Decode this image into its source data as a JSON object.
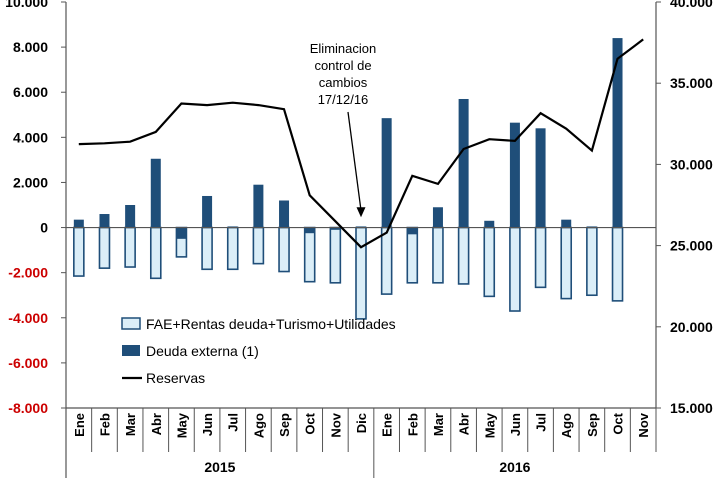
{
  "chart_data": {
    "type": "bar",
    "categories": [
      "Ene",
      "Feb",
      "Mar",
      "Abr",
      "May",
      "Jun",
      "Jul",
      "Ago",
      "Sep",
      "Oct",
      "Nov",
      "Dic",
      "Ene",
      "Feb",
      "Mar",
      "Abr",
      "May",
      "Jun",
      "Jul",
      "Ago",
      "Sep",
      "Oct",
      "Nov"
    ],
    "year_groups": [
      {
        "label": "2015",
        "start": 0,
        "end": 11
      },
      {
        "label": "2016",
        "start": 12,
        "end": 22
      }
    ],
    "series": [
      {
        "name": "FAE+Rentas deuda+Turismo+Utilidades",
        "type": "bar",
        "axis": "left",
        "values": [
          -2150,
          -1800,
          -1750,
          -2250,
          -1300,
          -1850,
          -1850,
          -1600,
          -1950,
          -2400,
          -2450,
          -4050,
          -2950,
          -2450,
          -2450,
          -2500,
          -3050,
          -3700,
          -2650,
          -3150,
          -3000,
          -3250,
          0
        ]
      },
      {
        "name": "Deuda externa (1)",
        "type": "bar",
        "axis": "left",
        "values": [
          350,
          600,
          1000,
          3050,
          -500,
          1400,
          50,
          1900,
          1200,
          -250,
          -100,
          50,
          4850,
          -300,
          900,
          5700,
          300,
          4650,
          4400,
          350,
          50,
          8400,
          0
        ]
      },
      {
        "name": "Reservas",
        "type": "line",
        "axis": "right",
        "values": [
          31250,
          31300,
          31400,
          32000,
          33750,
          33650,
          33800,
          33650,
          33400,
          28100,
          26500,
          24900,
          25800,
          29300,
          28800,
          30950,
          31550,
          31450,
          33150,
          32200,
          30850,
          36500,
          37700
        ]
      }
    ],
    "y_left": {
      "min": -8000,
      "max": 10000,
      "ticks": [
        -8000,
        -6000,
        -4000,
        -2000,
        0,
        2000,
        4000,
        6000,
        8000,
        10000
      ],
      "tick_labels": [
        "-8.000",
        "-6.000",
        "-4.000",
        "-2.000",
        "0",
        "2.000",
        "4.000",
        "6.000",
        "8.000",
        "10.000"
      ],
      "negative_color": "#cc0000"
    },
    "y_right": {
      "min": 15000,
      "max": 40000,
      "ticks": [
        15000,
        20000,
        25000,
        30000,
        35000,
        40000
      ],
      "tick_labels": [
        "15.000",
        "20.000",
        "25.000",
        "30.000",
        "35.000",
        "40.000"
      ]
    },
    "annotation": {
      "lines": [
        "Eliminacion",
        "control de",
        "cambios",
        "17/12/16"
      ],
      "points_to_index": 11
    },
    "legend": {
      "placement": "bottom-center-inside"
    },
    "colors": {
      "fae_fill": "#dbeef8",
      "fae_stroke": "#1f4e79",
      "deuda": "#1f4e79",
      "reservas": "#000000",
      "axis": "#555555"
    },
    "grid": false,
    "title": "",
    "xlabel": "",
    "ylabel": ""
  }
}
